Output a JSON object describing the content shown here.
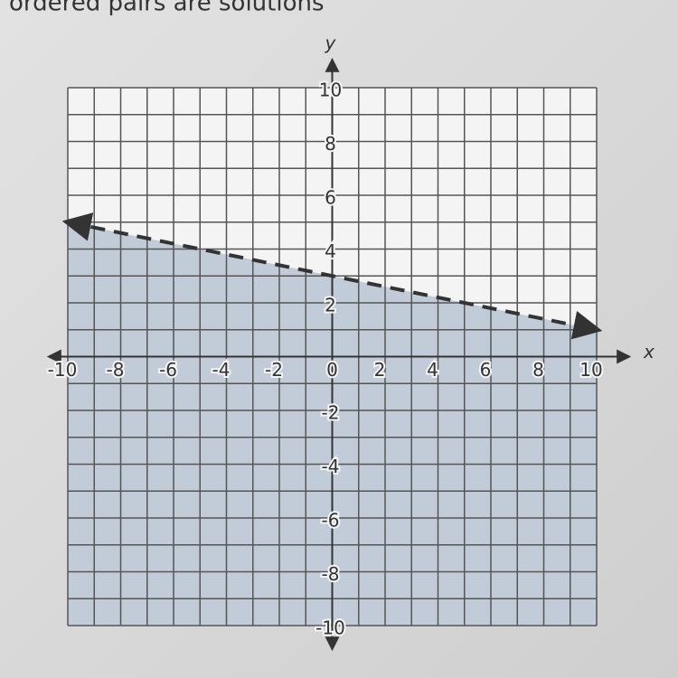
{
  "chart_data": {
    "type": "line",
    "title": "ordered pairs are solutions",
    "x_label": "x",
    "y_label": "y",
    "x": [
      -10,
      10
    ],
    "series": [
      {
        "values": [
          5,
          1
        ],
        "color": "#333333",
        "dashed": true,
        "shade": "below",
        "shade_color": "#b8c4d4"
      }
    ],
    "xlim": [
      -10,
      10
    ],
    "ylim": [
      -10,
      10
    ],
    "xticks": [
      -10,
      -8,
      -6,
      -4,
      -2,
      0,
      2,
      4,
      6,
      8,
      10
    ],
    "yticks": [
      -10,
      -8,
      -6,
      -4,
      -2,
      2,
      4,
      6,
      8,
      10
    ],
    "grid": true
  }
}
